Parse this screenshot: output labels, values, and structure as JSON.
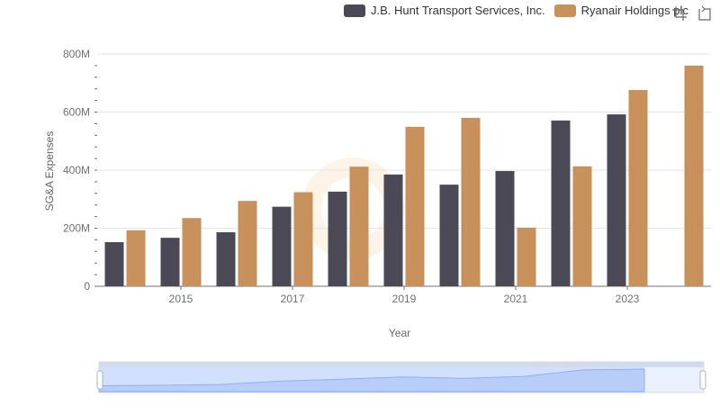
{
  "legend": [
    {
      "name": "J.B. Hunt Transport Services, Inc.",
      "color": "#4a4955"
    },
    {
      "name": "Ryanair Holdings plc",
      "color": "#c8915c"
    }
  ],
  "toolbox": {
    "zoom_icon": "zoom-icon",
    "restore_icon": "restore-icon"
  },
  "chart_data": {
    "type": "bar",
    "ylabel": "SG&A Expenses",
    "xlabel": "Year",
    "ylim": [
      0,
      800
    ],
    "y_ticks": [
      "0",
      "200M",
      "400M",
      "600M",
      "800M"
    ],
    "categories": [
      "2014",
      "2015",
      "2016",
      "2017",
      "2018",
      "2019",
      "2020",
      "2021",
      "2022",
      "2023",
      "2024"
    ],
    "x_tick_labels": [
      "2015",
      "2017",
      "2019",
      "2021",
      "2023"
    ],
    "series": [
      {
        "name": "J.B. Hunt Transport Services, Inc.",
        "color": "#4a4955",
        "values": [
          152,
          167,
          186,
          274,
          326,
          385,
          350,
          397,
          571,
          592,
          null
        ]
      },
      {
        "name": "Ryanair Holdings plc",
        "color": "#c8915c",
        "values": [
          193,
          235,
          294,
          324,
          412,
          549,
          580,
          202,
          413,
          676,
          760
        ]
      }
    ]
  }
}
